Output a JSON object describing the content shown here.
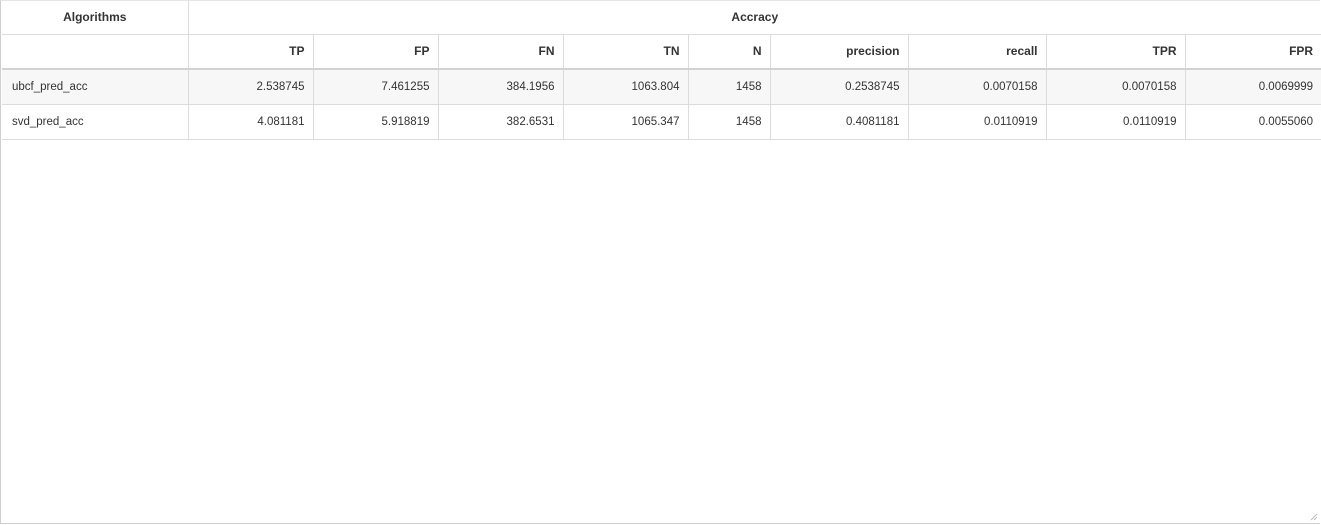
{
  "table": {
    "group_headers": {
      "algorithms": "Algorithms",
      "accuracy": "Accracy"
    },
    "columns": [
      "TP",
      "FP",
      "FN",
      "TN",
      "N",
      "precision",
      "recall",
      "TPR",
      "FPR"
    ],
    "rows": [
      {
        "name": "ubcf_pred_acc",
        "values": [
          "2.538745",
          "7.461255",
          "384.1956",
          "1063.804",
          "1458",
          "0.2538745",
          "0.0070158",
          "0.0070158",
          "0.0069999"
        ]
      },
      {
        "name": "svd_pred_acc",
        "values": [
          "4.081181",
          "5.918819",
          "382.6531",
          "1065.347",
          "1458",
          "0.4081181",
          "0.0110919",
          "0.0110919",
          "0.0055060"
        ]
      }
    ]
  }
}
